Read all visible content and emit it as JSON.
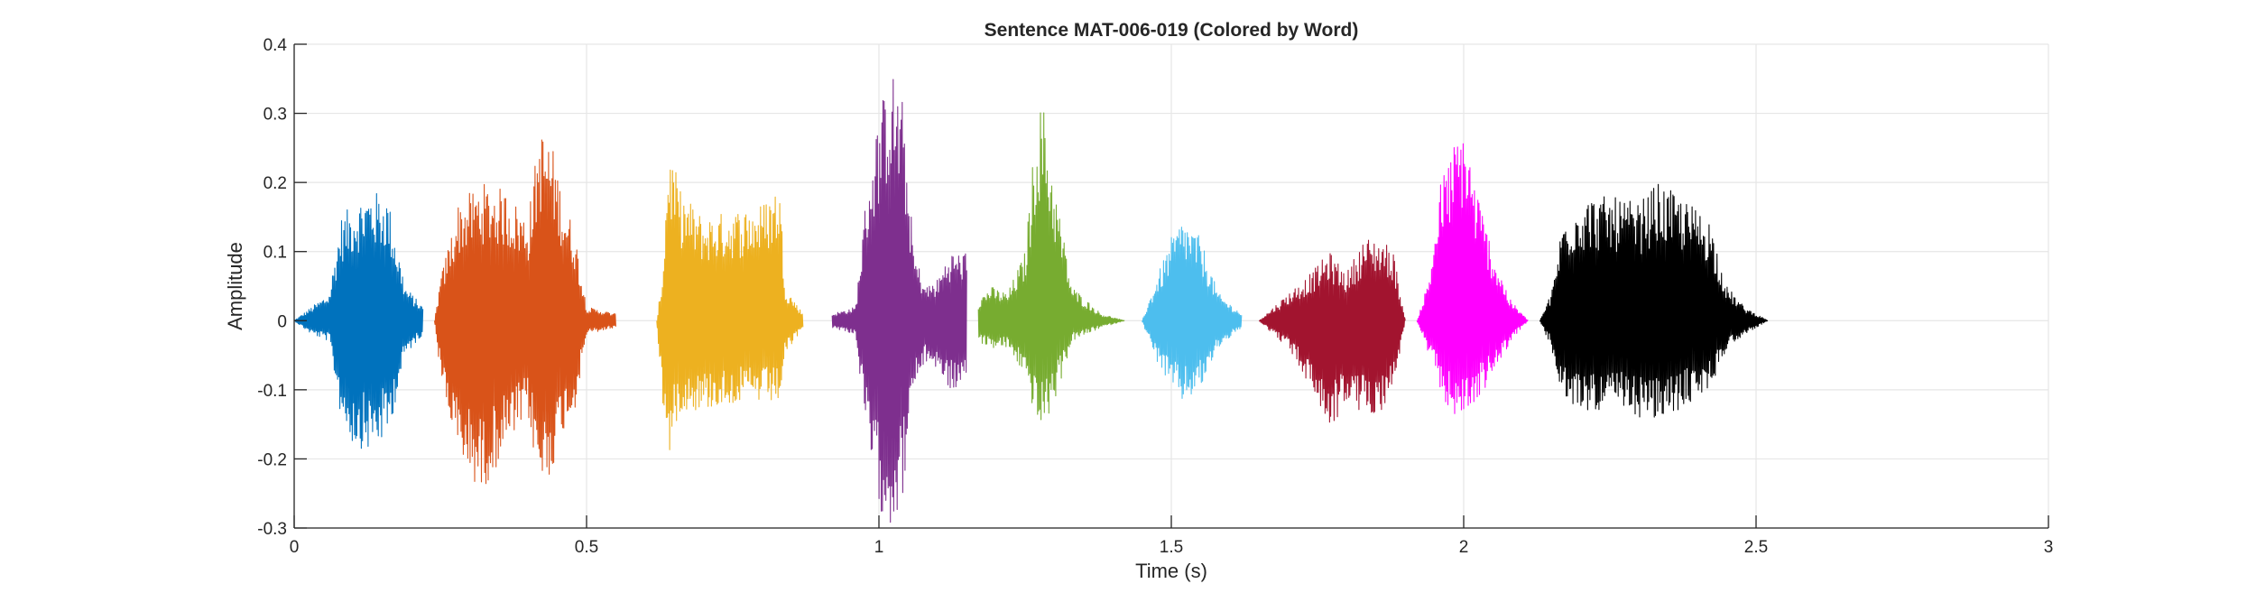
{
  "chart_data": {
    "type": "line",
    "title": "Sentence MAT-006-019 (Colored by Word)",
    "xlabel": "Time (s)",
    "ylabel": "Amplitude",
    "xlim": [
      0,
      3
    ],
    "ylim": [
      -0.3,
      0.4
    ],
    "x_ticks": [
      0,
      0.5,
      1,
      1.5,
      2,
      2.5,
      3
    ],
    "x_tick_labels": [
      "0",
      "0.5",
      "1",
      "1.5",
      "2",
      "2.5",
      "3"
    ],
    "y_ticks": [
      -0.3,
      -0.2,
      -0.1,
      0,
      0.1,
      0.2,
      0.3,
      0.4
    ],
    "y_tick_labels": [
      "-0.3",
      "-0.2",
      "-0.1",
      "0",
      "0.1",
      "0.2",
      "0.3",
      "0.4"
    ],
    "grid": true,
    "legend": "none",
    "series": [
      {
        "color": "#0072BD",
        "x_range": [
          0.0,
          0.22
        ],
        "envelope": {
          "t": [
            0.0,
            0.03,
            0.06,
            0.08,
            0.1,
            0.13,
            0.16,
            0.19,
            0.22
          ],
          "max": [
            0.0,
            0.02,
            0.04,
            0.15,
            0.17,
            0.19,
            0.18,
            0.05,
            0.02
          ],
          "min": [
            0.0,
            -0.02,
            -0.03,
            -0.14,
            -0.18,
            -0.19,
            -0.17,
            -0.05,
            -0.02
          ]
        }
      },
      {
        "color": "#D95319",
        "x_range": [
          0.24,
          0.55
        ],
        "envelope": {
          "t": [
            0.24,
            0.25,
            0.28,
            0.32,
            0.36,
            0.4,
            0.42,
            0.44,
            0.46,
            0.48,
            0.5,
            0.55
          ],
          "max": [
            0.0,
            0.06,
            0.17,
            0.2,
            0.19,
            0.15,
            0.28,
            0.26,
            0.18,
            0.13,
            0.02,
            0.01
          ],
          "min": [
            0.0,
            -0.08,
            -0.2,
            -0.25,
            -0.19,
            -0.14,
            -0.25,
            -0.22,
            -0.16,
            -0.13,
            -0.02,
            -0.01
          ]
        }
      },
      {
        "color": "#EDB120",
        "x_range": [
          0.62,
          0.87
        ],
        "envelope": {
          "t": [
            0.62,
            0.63,
            0.64,
            0.66,
            0.7,
            0.75,
            0.8,
            0.83,
            0.84,
            0.87
          ],
          "max": [
            0.0,
            0.07,
            0.26,
            0.19,
            0.15,
            0.16,
            0.17,
            0.2,
            0.05,
            0.01
          ],
          "min": [
            0.0,
            -0.12,
            -0.2,
            -0.13,
            -0.13,
            -0.12,
            -0.12,
            -0.12,
            -0.05,
            -0.01
          ]
        }
      },
      {
        "color": "#7E2F8E",
        "x_range": [
          0.92,
          1.15
        ],
        "envelope": {
          "t": [
            0.92,
            0.96,
            0.98,
            1.0,
            1.02,
            1.04,
            1.06,
            1.08,
            1.1,
            1.12,
            1.15
          ],
          "max": [
            0.01,
            0.02,
            0.2,
            0.3,
            0.37,
            0.32,
            0.1,
            0.05,
            0.06,
            0.1,
            0.1
          ],
          "min": [
            -0.01,
            -0.02,
            -0.18,
            -0.27,
            -0.3,
            -0.26,
            -0.1,
            -0.06,
            -0.07,
            -0.1,
            -0.1
          ]
        }
      },
      {
        "color": "#77AC30",
        "x_range": [
          1.17,
          1.42
        ],
        "envelope": {
          "t": [
            1.17,
            1.19,
            1.22,
            1.25,
            1.27,
            1.28,
            1.3,
            1.33,
            1.38,
            1.42
          ],
          "max": [
            0.03,
            0.05,
            0.04,
            0.1,
            0.3,
            0.32,
            0.2,
            0.05,
            0.01,
            0.0
          ],
          "min": [
            -0.03,
            -0.04,
            -0.04,
            -0.08,
            -0.15,
            -0.16,
            -0.12,
            -0.03,
            -0.01,
            0.0
          ]
        }
      },
      {
        "color": "#4DBEEE",
        "x_range": [
          1.45,
          1.62
        ],
        "envelope": {
          "t": [
            1.45,
            1.47,
            1.5,
            1.52,
            1.55,
            1.58,
            1.62
          ],
          "max": [
            0.0,
            0.05,
            0.12,
            0.15,
            0.12,
            0.04,
            0.01
          ],
          "min": [
            0.0,
            -0.05,
            -0.1,
            -0.12,
            -0.1,
            -0.04,
            -0.01
          ]
        }
      },
      {
        "color": "#A2142F",
        "x_range": [
          1.65,
          1.9
        ],
        "envelope": {
          "t": [
            1.65,
            1.7,
            1.74,
            1.77,
            1.8,
            1.83,
            1.86,
            1.88,
            1.9
          ],
          "max": [
            0.0,
            0.04,
            0.07,
            0.1,
            0.07,
            0.12,
            0.12,
            0.1,
            0.0
          ],
          "min": [
            0.0,
            -0.04,
            -0.1,
            -0.16,
            -0.12,
            -0.14,
            -0.13,
            -0.1,
            0.0
          ]
        }
      },
      {
        "color": "#FF00FF",
        "x_range": [
          1.92,
          2.11
        ],
        "envelope": {
          "t": [
            1.92,
            1.94,
            1.96,
            1.98,
            2.0,
            2.02,
            2.05,
            2.08,
            2.11
          ],
          "max": [
            0.0,
            0.06,
            0.2,
            0.25,
            0.29,
            0.2,
            0.1,
            0.03,
            0.0
          ],
          "min": [
            0.0,
            -0.05,
            -0.1,
            -0.14,
            -0.14,
            -0.12,
            -0.08,
            -0.03,
            0.0
          ]
        }
      },
      {
        "color": "#000000",
        "x_range": [
          2.13,
          2.52
        ],
        "envelope": {
          "t": [
            2.13,
            2.15,
            2.17,
            2.2,
            2.25,
            2.3,
            2.33,
            2.37,
            2.42,
            2.45,
            2.48,
            2.52
          ],
          "max": [
            0.0,
            0.04,
            0.15,
            0.18,
            0.18,
            0.17,
            0.2,
            0.18,
            0.15,
            0.05,
            0.02,
            0.0
          ],
          "min": [
            0.0,
            -0.04,
            -0.12,
            -0.13,
            -0.13,
            -0.14,
            -0.15,
            -0.13,
            -0.1,
            -0.04,
            -0.02,
            0.0
          ]
        }
      }
    ]
  }
}
